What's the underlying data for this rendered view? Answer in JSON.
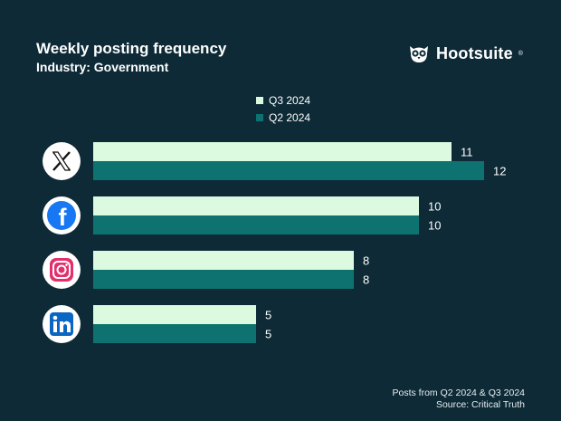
{
  "brand": {
    "name": "Hootsuite",
    "reg_mark": "®"
  },
  "colors": {
    "background": "#0d2a36",
    "q3": "#dcfadf",
    "q2": "#0e7370",
    "icon_bg": "#ffffff"
  },
  "chart_data": {
    "type": "bar",
    "orientation": "horizontal",
    "title": "Weekly posting frequency",
    "subtitle": "Industry: Government",
    "categories": [
      "X",
      "Facebook",
      "Instagram",
      "LinkedIn"
    ],
    "category_icons": [
      "x-logo-icon",
      "facebook-logo-icon",
      "instagram-logo-icon",
      "linkedin-logo-icon"
    ],
    "series": [
      {
        "name": "Q3 2024",
        "values": [
          11,
          10,
          8,
          5
        ],
        "color": "#dcfadf"
      },
      {
        "name": "Q2 2024",
        "values": [
          12,
          10,
          8,
          5
        ],
        "color": "#0e7370"
      }
    ],
    "xlim": [
      0,
      12
    ],
    "legend_position": "top",
    "footnote": "Posts from Q2 2024 & Q3 2024",
    "source": "Source: Critical Truth"
  }
}
